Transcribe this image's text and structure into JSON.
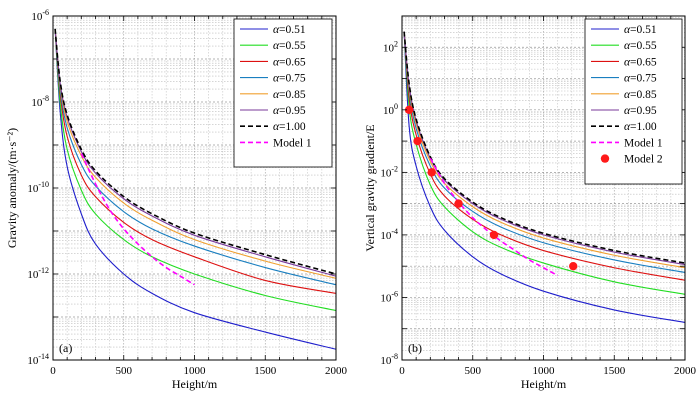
{
  "chart_data": [
    {
      "type": "line",
      "panel_label": "(a)",
      "xlabel": "Height/m",
      "ylabel": "Gravity anomaly/(m·s⁻²)",
      "xlim": [
        0,
        2000
      ],
      "ylim": [
        1e-14,
        1e-06
      ],
      "yscale": "log",
      "grid": true,
      "legend_position": "top-right",
      "x_ticks": [
        "0",
        "500",
        "1000",
        "1500",
        "2000"
      ],
      "y_ticks": [
        {
          "base": "10",
          "exp": "-14",
          "value": -14
        },
        {
          "base": "10",
          "exp": "-12",
          "value": -12
        },
        {
          "base": "10",
          "exp": "-10",
          "value": -10
        },
        {
          "base": "10",
          "exp": "-8",
          "value": -8
        },
        {
          "base": "10",
          "exp": "-6",
          "value": -6
        }
      ],
      "series": [
        {
          "name": "α=0.51",
          "alpha": "α",
          "value_text": "=0.51",
          "color": "#1f1fcc",
          "dash": "solid",
          "x": [
            15,
            50,
            100,
            200,
            300,
            500,
            700,
            1000,
            1500,
            2000
          ],
          "y_log10": [
            -6.3,
            -8.2,
            -9.5,
            -10.6,
            -11.3,
            -12.0,
            -12.45,
            -12.9,
            -13.35,
            -13.75
          ]
        },
        {
          "name": "α=0.55",
          "alpha": "α",
          "value_text": "=0.55",
          "color": "#22dd22",
          "dash": "solid",
          "x": [
            15,
            50,
            100,
            200,
            300,
            500,
            700,
            1000,
            1500,
            2000
          ],
          "y_log10": [
            -6.3,
            -8.0,
            -9.1,
            -10.05,
            -10.6,
            -11.2,
            -11.6,
            -12.0,
            -12.5,
            -12.85
          ]
        },
        {
          "name": "α=0.65",
          "alpha": "α",
          "value_text": "=0.65",
          "color": "#dd1111",
          "dash": "solid",
          "x": [
            15,
            50,
            100,
            200,
            300,
            500,
            700,
            1000,
            1500,
            2000
          ],
          "y_log10": [
            -6.3,
            -7.8,
            -8.8,
            -9.7,
            -10.2,
            -10.8,
            -11.2,
            -11.6,
            -12.15,
            -12.45
          ]
        },
        {
          "name": "α=0.75",
          "alpha": "α",
          "value_text": "=0.75",
          "color": "#1a7fc0",
          "dash": "solid",
          "x": [
            15,
            50,
            100,
            200,
            300,
            500,
            700,
            1000,
            1500,
            2000
          ],
          "y_log10": [
            -6.3,
            -7.7,
            -8.6,
            -9.45,
            -9.95,
            -10.55,
            -10.95,
            -11.35,
            -11.85,
            -12.25
          ]
        },
        {
          "name": "α=0.85",
          "alpha": "α",
          "value_text": "=0.85",
          "color": "#f0a030",
          "dash": "solid",
          "x": [
            15,
            50,
            100,
            200,
            300,
            500,
            700,
            1000,
            1500,
            2000
          ],
          "y_log10": [
            -6.3,
            -7.6,
            -8.45,
            -9.25,
            -9.75,
            -10.35,
            -10.75,
            -11.2,
            -11.7,
            -12.1
          ]
        },
        {
          "name": "α=0.95",
          "alpha": "α",
          "value_text": "=0.95",
          "color": "#7a3a9a",
          "dash": "solid",
          "x": [
            15,
            50,
            100,
            200,
            300,
            500,
            700,
            1000,
            1500,
            2000
          ],
          "y_log10": [
            -6.3,
            -7.55,
            -8.35,
            -9.15,
            -9.65,
            -10.25,
            -10.65,
            -11.1,
            -11.6,
            -12.05
          ]
        },
        {
          "name": "α=1.00",
          "alpha": "α",
          "value_text": "=1.00",
          "color": "#000000",
          "dash": "dashed",
          "x": [
            15,
            50,
            100,
            200,
            300,
            500,
            700,
            1000,
            1500,
            2000
          ],
          "y_log10": [
            -6.3,
            -7.5,
            -8.3,
            -9.1,
            -9.6,
            -10.2,
            -10.6,
            -11.05,
            -11.55,
            -12.0
          ]
        },
        {
          "name": "Model 1",
          "value_text": "Model 1",
          "color": "#ff00ff",
          "dash": "dashed",
          "x": [
            200,
            300,
            400,
            500,
            600,
            700,
            800,
            900,
            1000
          ],
          "y_log10": [
            -9.2,
            -9.9,
            -10.5,
            -10.95,
            -11.3,
            -11.6,
            -11.85,
            -12.05,
            -12.25
          ]
        }
      ]
    },
    {
      "type": "line",
      "panel_label": "(b)",
      "xlabel": "Height/m",
      "ylabel": "Vertical gravity gradient/E",
      "xlim": [
        0,
        2000
      ],
      "ylim": [
        1e-08,
        1000
      ],
      "yscale": "log",
      "grid": true,
      "legend_position": "top-right",
      "x_ticks": [
        "0",
        "500",
        "1000",
        "1500",
        "2000"
      ],
      "y_ticks": [
        {
          "base": "10",
          "exp": "-8",
          "value": -8
        },
        {
          "base": "10",
          "exp": "-6",
          "value": -6
        },
        {
          "base": "10",
          "exp": "-4",
          "value": -4
        },
        {
          "base": "10",
          "exp": "-2",
          "value": -2
        },
        {
          "base": "10",
          "exp": "0",
          "value": 0
        },
        {
          "base": "10",
          "exp": "2",
          "value": 2
        }
      ],
      "series": [
        {
          "name": "α=0.51",
          "alpha": "α",
          "value_text": "=0.51",
          "color": "#1f1fcc",
          "dash": "solid",
          "x": [
            15,
            50,
            100,
            200,
            300,
            500,
            700,
            1000,
            1500,
            2000
          ],
          "y_log10": [
            2.5,
            -0.5,
            -1.8,
            -3.1,
            -3.85,
            -4.7,
            -5.25,
            -5.8,
            -6.4,
            -6.8
          ]
        },
        {
          "name": "α=0.55",
          "alpha": "α",
          "value_text": "=0.55",
          "color": "#22dd22",
          "dash": "solid",
          "x": [
            15,
            50,
            100,
            200,
            300,
            500,
            700,
            1000,
            1500,
            2000
          ],
          "y_log10": [
            2.5,
            0.1,
            -1.1,
            -2.4,
            -3.1,
            -3.9,
            -4.4,
            -4.9,
            -5.5,
            -5.9
          ]
        },
        {
          "name": "α=0.65",
          "alpha": "α",
          "value_text": "=0.65",
          "color": "#dd1111",
          "dash": "solid",
          "x": [
            15,
            50,
            100,
            200,
            300,
            500,
            700,
            1000,
            1500,
            2000
          ],
          "y_log10": [
            2.5,
            0.4,
            -0.8,
            -2.05,
            -2.75,
            -3.5,
            -4.0,
            -4.5,
            -5.05,
            -5.45
          ]
        },
        {
          "name": "α=0.75",
          "alpha": "α",
          "value_text": "=0.75",
          "color": "#1a7fc0",
          "dash": "solid",
          "x": [
            15,
            50,
            100,
            200,
            300,
            500,
            700,
            1000,
            1500,
            2000
          ],
          "y_log10": [
            2.5,
            0.6,
            -0.6,
            -1.8,
            -2.5,
            -3.25,
            -3.75,
            -4.25,
            -4.8,
            -5.2
          ]
        },
        {
          "name": "α=0.85",
          "alpha": "α",
          "value_text": "=0.85",
          "color": "#f0a030",
          "dash": "solid",
          "x": [
            15,
            50,
            100,
            200,
            300,
            500,
            700,
            1000,
            1500,
            2000
          ],
          "y_log10": [
            2.5,
            0.7,
            -0.45,
            -1.65,
            -2.35,
            -3.1,
            -3.6,
            -4.1,
            -4.65,
            -5.05
          ]
        },
        {
          "name": "α=0.95",
          "alpha": "α",
          "value_text": "=0.95",
          "color": "#7a3a9a",
          "dash": "solid",
          "x": [
            15,
            50,
            100,
            200,
            300,
            500,
            700,
            1000,
            1500,
            2000
          ],
          "y_log10": [
            2.5,
            0.8,
            -0.35,
            -1.55,
            -2.25,
            -3.0,
            -3.5,
            -4.0,
            -4.55,
            -4.95
          ]
        },
        {
          "name": "α=1.00",
          "alpha": "α",
          "value_text": "=1.00",
          "color": "#000000",
          "dash": "dashed",
          "x": [
            15,
            50,
            100,
            200,
            300,
            500,
            700,
            1000,
            1500,
            2000
          ],
          "y_log10": [
            2.5,
            0.85,
            -0.3,
            -1.5,
            -2.2,
            -2.95,
            -3.45,
            -3.95,
            -4.5,
            -4.9
          ]
        },
        {
          "name": "Model 1",
          "value_text": "Model 1",
          "color": "#ff00ff",
          "dash": "dashed",
          "x": [
            200,
            300,
            400,
            500,
            600,
            700,
            800,
            900,
            1000,
            1100
          ],
          "y_log10": [
            -1.55,
            -2.35,
            -2.95,
            -3.45,
            -3.85,
            -4.2,
            -4.5,
            -4.8,
            -5.05,
            -5.3
          ]
        },
        {
          "name": "Model 2",
          "value_text": "Model 2",
          "color": "#ff1a1a",
          "marker": "circle",
          "x": [
            50,
            110,
            210,
            400,
            650,
            1210
          ],
          "y_log10": [
            0,
            -1,
            -2,
            -3,
            -4,
            -5
          ]
        }
      ]
    }
  ]
}
